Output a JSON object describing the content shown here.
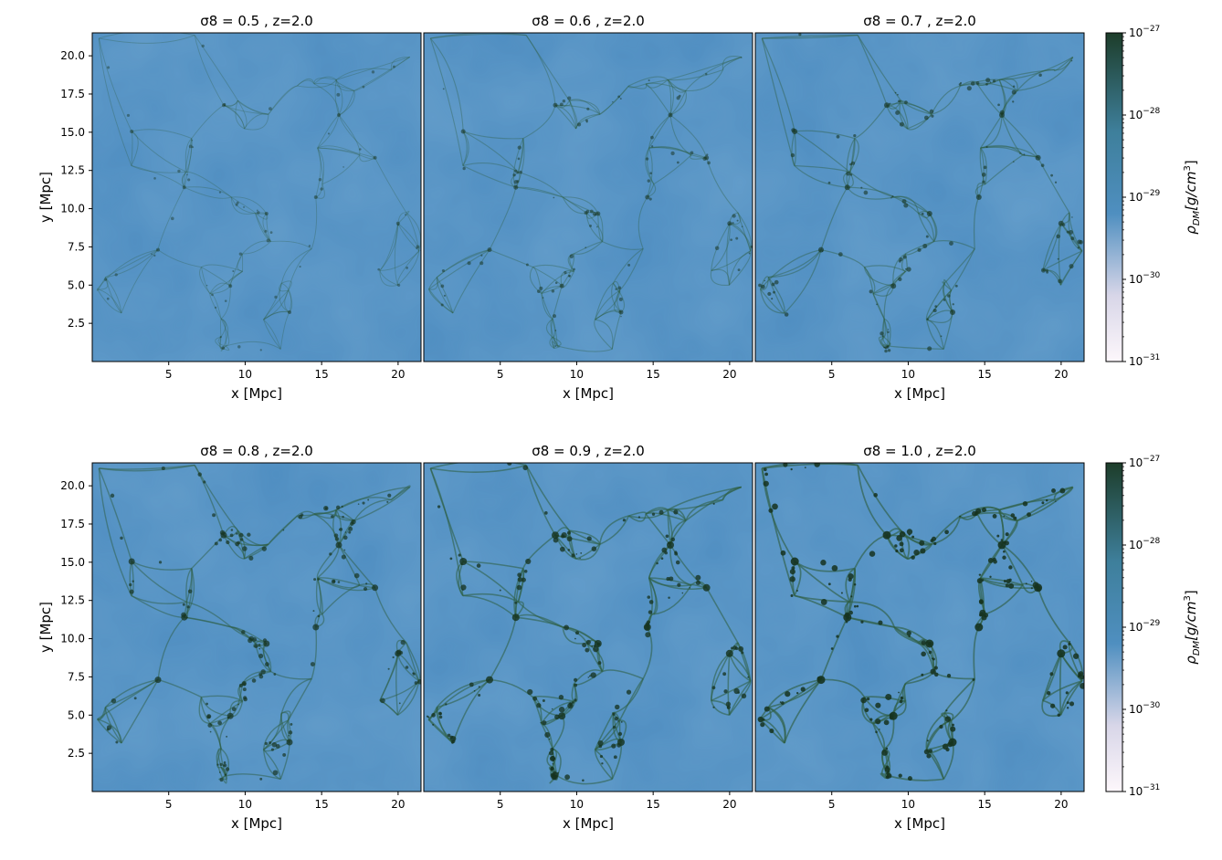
{
  "chart_data": [
    {
      "type": "heatmap",
      "title": "σ8 = 0.5 , z=2.0",
      "xlabel": "x [Mpc]",
      "ylabel": "y [Mpc]",
      "xlim": [
        0,
        21.5
      ],
      "ylim": [
        0,
        21.5
      ],
      "xticks": [
        "5",
        "10",
        "15",
        "20"
      ],
      "yticks": [
        "2.5",
        "5.0",
        "7.5",
        "10.0",
        "12.5",
        "15.0",
        "17.5",
        "20.0"
      ],
      "sigma8": 0.5,
      "z": 2.0
    },
    {
      "type": "heatmap",
      "title": "σ8 = 0.6 , z=2.0",
      "xlabel": "x [Mpc]",
      "ylabel": "",
      "xlim": [
        0,
        21.5
      ],
      "ylim": [
        0,
        21.5
      ],
      "xticks": [
        "5",
        "10",
        "15",
        "20"
      ],
      "yticks": [],
      "sigma8": 0.6,
      "z": 2.0
    },
    {
      "type": "heatmap",
      "title": "σ8 = 0.7 , z=2.0",
      "xlabel": "x [Mpc]",
      "ylabel": "",
      "xlim": [
        0,
        21.5
      ],
      "ylim": [
        0,
        21.5
      ],
      "xticks": [
        "5",
        "10",
        "15",
        "20"
      ],
      "yticks": [],
      "sigma8": 0.7,
      "z": 2.0
    },
    {
      "type": "heatmap",
      "title": "σ8 = 0.8 , z=2.0",
      "xlabel": "x [Mpc]",
      "ylabel": "y [Mpc]",
      "xlim": [
        0,
        21.5
      ],
      "ylim": [
        0,
        21.5
      ],
      "xticks": [
        "5",
        "10",
        "15",
        "20"
      ],
      "yticks": [
        "2.5",
        "5.0",
        "7.5",
        "10.0",
        "12.5",
        "15.0",
        "17.5",
        "20.0"
      ],
      "sigma8": 0.8,
      "z": 2.0
    },
    {
      "type": "heatmap",
      "title": "σ8 = 0.9 , z=2.0",
      "xlabel": "x [Mpc]",
      "ylabel": "",
      "xlim": [
        0,
        21.5
      ],
      "ylim": [
        0,
        21.5
      ],
      "xticks": [
        "5",
        "10",
        "15",
        "20"
      ],
      "yticks": [],
      "sigma8": 0.9,
      "z": 2.0
    },
    {
      "type": "heatmap",
      "title": "σ8 = 1.0 , z=2.0",
      "xlabel": "x [Mpc]",
      "ylabel": "",
      "xlim": [
        0,
        21.5
      ],
      "ylim": [
        0,
        21.5
      ],
      "xticks": [
        "5",
        "10",
        "15",
        "20"
      ],
      "yticks": [],
      "sigma8": 1.0,
      "z": 2.0
    }
  ],
  "colorbar": {
    "label_base": "ρ",
    "label_sub": "DM",
    "label_rest": "[g/cm",
    "label_sup": "3",
    "label_end": "]",
    "scale": "log",
    "range": [
      1e-31,
      1e-27
    ],
    "ticks": [
      {
        "base": "10",
        "exp": "−27",
        "value": 1e-27
      },
      {
        "base": "10",
        "exp": "−28",
        "value": 1e-28
      },
      {
        "base": "10",
        "exp": "−29",
        "value": 1e-29
      },
      {
        "base": "10",
        "exp": "−30",
        "value": 1e-30
      },
      {
        "base": "10",
        "exp": "−31",
        "value": 1e-31
      }
    ],
    "colors": {
      "low": "#fdf7fb",
      "mid_low": "#d8d6e8",
      "mid": "#4f8fc0",
      "mid_high": "#3b7a8a",
      "high": "#1d3d2a"
    }
  },
  "colors": {
    "background": "#4e8dc1",
    "filament": "#2f5f45",
    "halo": "#16331f"
  }
}
